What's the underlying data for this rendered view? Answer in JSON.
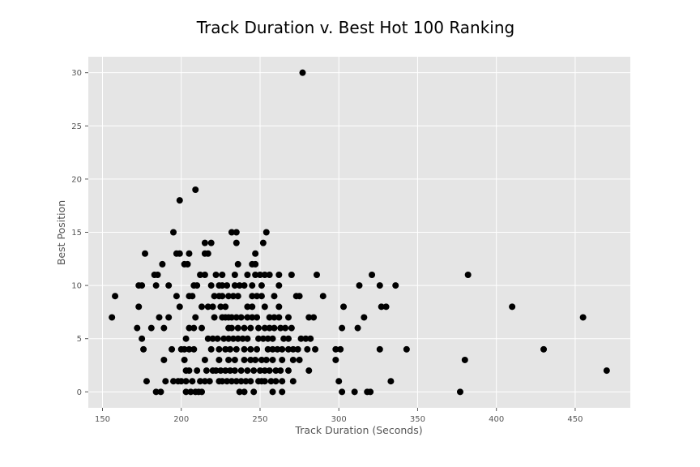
{
  "chart_data": {
    "type": "scatter",
    "title": "Track Duration v. Best Hot 100 Ranking",
    "xlabel": "Track Duration (Seconds)",
    "ylabel": "Best Position",
    "xlim": [
      141,
      485
    ],
    "ylim": [
      -1.5,
      31.5
    ],
    "xticks": [
      150,
      200,
      250,
      300,
      350,
      400,
      450
    ],
    "yticks": [
      0,
      5,
      10,
      15,
      20,
      25,
      30
    ],
    "grid": true,
    "colors": {
      "plot_bg": "#e5e5e5",
      "grid": "#ffffff",
      "marker": "#000000"
    },
    "series": [
      {
        "points": [
          [
            277,
            30
          ],
          [
            209,
            19
          ],
          [
            199,
            18
          ],
          [
            195,
            15
          ],
          [
            232,
            15
          ],
          [
            235,
            15
          ],
          [
            254,
            15
          ],
          [
            215,
            14
          ],
          [
            219,
            14
          ],
          [
            235,
            14
          ],
          [
            252,
            14
          ],
          [
            177,
            13
          ],
          [
            197,
            13
          ],
          [
            199,
            13
          ],
          [
            205,
            13
          ],
          [
            215,
            13
          ],
          [
            217,
            13
          ],
          [
            247,
            13
          ],
          [
            188,
            12
          ],
          [
            202,
            12
          ],
          [
            204,
            12
          ],
          [
            236,
            12
          ],
          [
            245,
            12
          ],
          [
            247,
            12
          ],
          [
            183,
            11
          ],
          [
            185,
            11
          ],
          [
            212,
            11
          ],
          [
            215,
            11
          ],
          [
            222,
            11
          ],
          [
            226,
            11
          ],
          [
            234,
            11
          ],
          [
            242,
            11
          ],
          [
            247,
            11
          ],
          [
            250,
            11
          ],
          [
            253,
            11
          ],
          [
            256,
            11
          ],
          [
            262,
            11
          ],
          [
            270,
            11
          ],
          [
            286,
            11
          ],
          [
            321,
            11
          ],
          [
            382,
            11
          ],
          [
            173,
            10
          ],
          [
            175,
            10
          ],
          [
            184,
            10
          ],
          [
            192,
            10
          ],
          [
            208,
            10
          ],
          [
            210,
            10
          ],
          [
            219,
            10
          ],
          [
            224,
            10
          ],
          [
            226,
            10
          ],
          [
            229,
            10
          ],
          [
            234,
            10
          ],
          [
            237,
            10
          ],
          [
            240,
            10
          ],
          [
            245,
            10
          ],
          [
            251,
            10
          ],
          [
            262,
            10
          ],
          [
            313,
            10
          ],
          [
            326,
            10
          ],
          [
            336,
            10
          ],
          [
            158,
            9
          ],
          [
            197,
            9
          ],
          [
            205,
            9
          ],
          [
            207,
            9
          ],
          [
            221,
            9
          ],
          [
            224,
            9
          ],
          [
            226,
            9
          ],
          [
            230,
            9
          ],
          [
            233,
            9
          ],
          [
            236,
            9
          ],
          [
            245,
            9
          ],
          [
            248,
            9
          ],
          [
            251,
            9
          ],
          [
            259,
            9
          ],
          [
            273,
            9
          ],
          [
            275,
            9
          ],
          [
            290,
            9
          ],
          [
            173,
            8
          ],
          [
            199,
            8
          ],
          [
            213,
            8
          ],
          [
            217,
            8
          ],
          [
            220,
            8
          ],
          [
            225,
            8
          ],
          [
            228,
            8
          ],
          [
            242,
            8
          ],
          [
            245,
            8
          ],
          [
            253,
            8
          ],
          [
            262,
            8
          ],
          [
            303,
            8
          ],
          [
            327,
            8
          ],
          [
            330,
            8
          ],
          [
            410,
            8
          ],
          [
            156,
            7
          ],
          [
            186,
            7
          ],
          [
            192,
            7
          ],
          [
            209,
            7
          ],
          [
            221,
            7
          ],
          [
            226,
            7
          ],
          [
            228,
            7
          ],
          [
            230,
            7
          ],
          [
            232,
            7
          ],
          [
            235,
            7
          ],
          [
            238,
            7
          ],
          [
            242,
            7
          ],
          [
            245,
            7
          ],
          [
            248,
            7
          ],
          [
            256,
            7
          ],
          [
            259,
            7
          ],
          [
            262,
            7
          ],
          [
            268,
            7
          ],
          [
            281,
            7
          ],
          [
            284,
            7
          ],
          [
            316,
            7
          ],
          [
            455,
            7
          ],
          [
            172,
            6
          ],
          [
            181,
            6
          ],
          [
            189,
            6
          ],
          [
            205,
            6
          ],
          [
            208,
            6
          ],
          [
            213,
            6
          ],
          [
            230,
            6
          ],
          [
            232,
            6
          ],
          [
            236,
            6
          ],
          [
            240,
            6
          ],
          [
            244,
            6
          ],
          [
            249,
            6
          ],
          [
            253,
            6
          ],
          [
            256,
            6
          ],
          [
            259,
            6
          ],
          [
            263,
            6
          ],
          [
            266,
            6
          ],
          [
            270,
            6
          ],
          [
            302,
            6
          ],
          [
            312,
            6
          ],
          [
            175,
            5
          ],
          [
            203,
            5
          ],
          [
            217,
            5
          ],
          [
            220,
            5
          ],
          [
            223,
            5
          ],
          [
            227,
            5
          ],
          [
            230,
            5
          ],
          [
            233,
            5
          ],
          [
            236,
            5
          ],
          [
            239,
            5
          ],
          [
            242,
            5
          ],
          [
            249,
            5
          ],
          [
            252,
            5
          ],
          [
            255,
            5
          ],
          [
            258,
            5
          ],
          [
            265,
            5
          ],
          [
            268,
            5
          ],
          [
            276,
            5
          ],
          [
            279,
            5
          ],
          [
            282,
            5
          ],
          [
            176,
            4
          ],
          [
            194,
            4
          ],
          [
            200,
            4
          ],
          [
            202,
            4
          ],
          [
            205,
            4
          ],
          [
            208,
            4
          ],
          [
            219,
            4
          ],
          [
            224,
            4
          ],
          [
            228,
            4
          ],
          [
            231,
            4
          ],
          [
            235,
            4
          ],
          [
            240,
            4
          ],
          [
            244,
            4
          ],
          [
            248,
            4
          ],
          [
            255,
            4
          ],
          [
            258,
            4
          ],
          [
            261,
            4
          ],
          [
            264,
            4
          ],
          [
            268,
            4
          ],
          [
            271,
            4
          ],
          [
            274,
            4
          ],
          [
            280,
            4
          ],
          [
            285,
            4
          ],
          [
            298,
            4
          ],
          [
            301,
            4
          ],
          [
            326,
            4
          ],
          [
            343,
            4
          ],
          [
            430,
            4
          ],
          [
            189,
            3
          ],
          [
            202,
            3
          ],
          [
            215,
            3
          ],
          [
            224,
            3
          ],
          [
            230,
            3
          ],
          [
            234,
            3
          ],
          [
            240,
            3
          ],
          [
            244,
            3
          ],
          [
            247,
            3
          ],
          [
            251,
            3
          ],
          [
            254,
            3
          ],
          [
            258,
            3
          ],
          [
            264,
            3
          ],
          [
            271,
            3
          ],
          [
            275,
            3
          ],
          [
            298,
            3
          ],
          [
            380,
            3
          ],
          [
            203,
            2
          ],
          [
            205,
            2
          ],
          [
            210,
            2
          ],
          [
            216,
            2
          ],
          [
            220,
            2
          ],
          [
            222,
            2
          ],
          [
            225,
            2
          ],
          [
            228,
            2
          ],
          [
            231,
            2
          ],
          [
            234,
            2
          ],
          [
            238,
            2
          ],
          [
            242,
            2
          ],
          [
            246,
            2
          ],
          [
            250,
            2
          ],
          [
            253,
            2
          ],
          [
            256,
            2
          ],
          [
            260,
            2
          ],
          [
            263,
            2
          ],
          [
            268,
            2
          ],
          [
            281,
            2
          ],
          [
            470,
            2
          ],
          [
            178,
            1
          ],
          [
            190,
            1
          ],
          [
            195,
            1
          ],
          [
            198,
            1
          ],
          [
            200,
            1
          ],
          [
            203,
            1
          ],
          [
            207,
            1
          ],
          [
            212,
            1
          ],
          [
            215,
            1
          ],
          [
            218,
            1
          ],
          [
            224,
            1
          ],
          [
            226,
            1
          ],
          [
            229,
            1
          ],
          [
            232,
            1
          ],
          [
            235,
            1
          ],
          [
            238,
            1
          ],
          [
            241,
            1
          ],
          [
            244,
            1
          ],
          [
            249,
            1
          ],
          [
            251,
            1
          ],
          [
            253,
            1
          ],
          [
            257,
            1
          ],
          [
            260,
            1
          ],
          [
            264,
            1
          ],
          [
            271,
            1
          ],
          [
            300,
            1
          ],
          [
            333,
            1
          ],
          [
            184,
            0
          ],
          [
            187,
            0
          ],
          [
            203,
            0
          ],
          [
            206,
            0
          ],
          [
            209,
            0
          ],
          [
            211,
            0
          ],
          [
            213,
            0
          ],
          [
            237,
            0
          ],
          [
            240,
            0
          ],
          [
            246,
            0
          ],
          [
            258,
            0
          ],
          [
            264,
            0
          ],
          [
            302,
            0
          ],
          [
            310,
            0
          ],
          [
            318,
            0
          ],
          [
            320,
            0
          ],
          [
            377,
            0
          ]
        ]
      }
    ]
  }
}
